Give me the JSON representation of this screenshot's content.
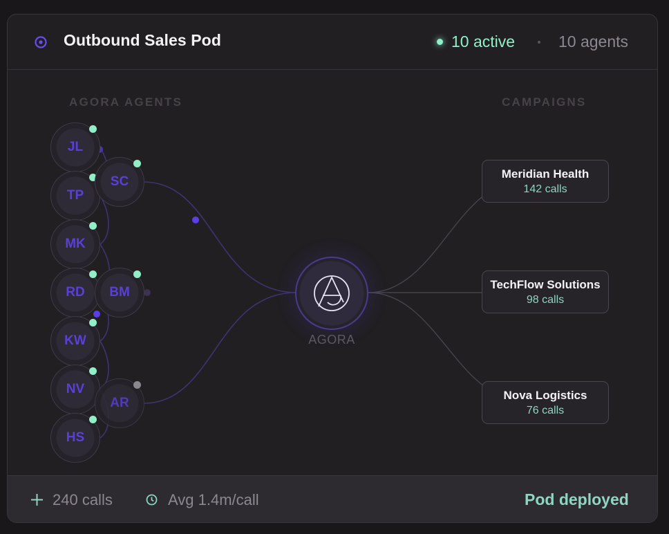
{
  "header": {
    "title": "Outbound Sales Pod",
    "active_label": "10 active",
    "agents_label": "10 agents"
  },
  "sections": {
    "agents_label": "AGORA AGENTS",
    "campaigns_label": "CAMPAIGNS"
  },
  "agents": [
    {
      "initials": "JL",
      "status": "online"
    },
    {
      "initials": "SC",
      "status": "online"
    },
    {
      "initials": "TP",
      "status": "online"
    },
    {
      "initials": "MK",
      "status": "online"
    },
    {
      "initials": "RD",
      "status": "online"
    },
    {
      "initials": "BM",
      "status": "online"
    },
    {
      "initials": "KW",
      "status": "online"
    },
    {
      "initials": "NV",
      "status": "online"
    },
    {
      "initials": "AR",
      "status": "idle"
    },
    {
      "initials": "HS",
      "status": "online"
    }
  ],
  "hub": {
    "label": "AGORA"
  },
  "campaigns": [
    {
      "name": "Meridian Health",
      "calls": "142 calls"
    },
    {
      "name": "TechFlow Solutions",
      "calls": "98 calls"
    },
    {
      "name": "Nova Logistics",
      "calls": "76 calls"
    }
  ],
  "footer": {
    "calls": "240 calls",
    "avg": "Avg 1.4m/call",
    "status": "Pod deployed"
  },
  "colors": {
    "accent_purple": "#5b3fd9",
    "online_green": "#8ff0c7",
    "status_teal": "#8fd6c0",
    "idle_gray": "#8a878d"
  },
  "icons": {
    "pod": "target-icon",
    "hub": "agora-logo-icon",
    "calls": "plus-icon",
    "avg": "clock-icon"
  }
}
